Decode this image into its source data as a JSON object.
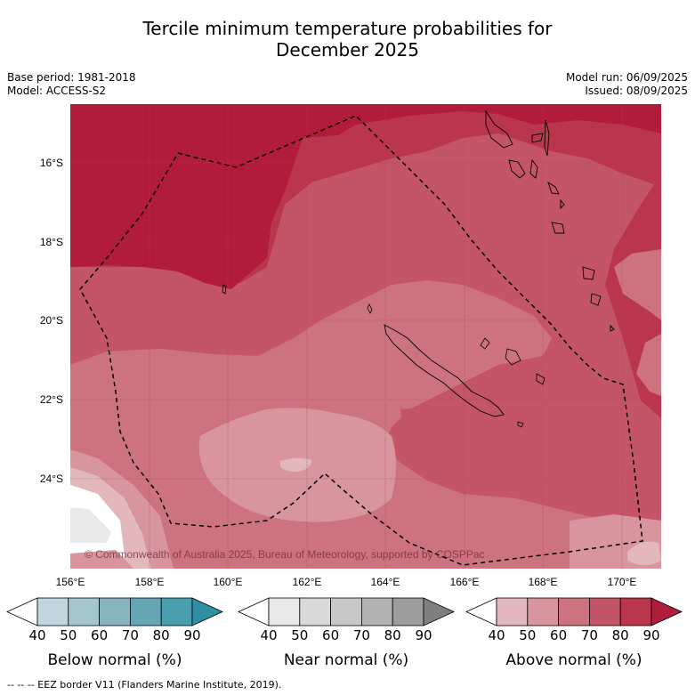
{
  "title_line1": "Tercile minimum temperature probabilities for",
  "title_line2": "December 2025",
  "meta": {
    "base_period": "Base period: 1981-2018",
    "model": "Model: ACCESS-S2",
    "model_run": "Model run: 06/09/2025",
    "issued": "Issued: 08/09/2025"
  },
  "axes": {
    "lon_ticks": [
      "156°E",
      "158°E",
      "160°E",
      "162°E",
      "164°E",
      "166°E",
      "168°E",
      "170°E"
    ],
    "lat_ticks": [
      "16°S",
      "18°S",
      "20°S",
      "22°S",
      "24°S"
    ]
  },
  "copyright": "© Commonwealth of Australia 2025, Bureau of Meteorology, supported by COSPPac",
  "colorbars": [
    {
      "label": "Below normal (%)",
      "ticks": [
        "40",
        "50",
        "60",
        "70",
        "80",
        "90"
      ],
      "colors": [
        "#ffffff",
        "#c0d6dc",
        "#a4c7cd",
        "#86b5c0",
        "#66a6b3",
        "#4a9fae",
        "#2e8fa1"
      ]
    },
    {
      "label": "Near normal (%)",
      "ticks": [
        "40",
        "50",
        "60",
        "70",
        "80",
        "90"
      ],
      "colors": [
        "#ffffff",
        "#e8e8e8",
        "#d9d9d9",
        "#c8c8c8",
        "#b3b3b3",
        "#9d9d9d",
        "#7f7f7f"
      ]
    },
    {
      "label": "Above normal (%)",
      "ticks": [
        "40",
        "50",
        "60",
        "70",
        "80",
        "90"
      ],
      "colors": [
        "#ffffff",
        "#e3b8bd",
        "#d8959d",
        "#cd737f",
        "#c35566",
        "#b9364c",
        "#b01c3a"
      ]
    }
  ],
  "footer": "--  --  -- EEZ border V11 (Flanders Marine Institute, 2019)."
}
